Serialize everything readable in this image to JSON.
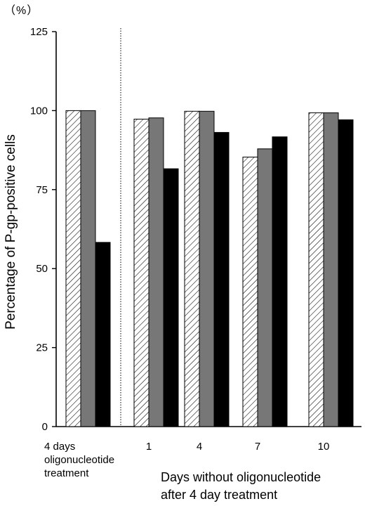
{
  "chart_data": {
    "type": "bar",
    "unit_label": "（%）",
    "ylabel": "Percentage of P-gp-positive cells",
    "xlabel_lines": [
      "Days without oligonucleotide",
      "after 4 day treatment"
    ],
    "ylim": [
      0,
      125
    ],
    "yticks": [
      0,
      25,
      50,
      75,
      100,
      125
    ],
    "categories": [
      "4 days oligonucleotide treatment",
      "1",
      "4",
      "7",
      "10"
    ],
    "category_label_lines": [
      [
        "4 days",
        "oligonucleotide",
        "treatment"
      ],
      [
        "1"
      ],
      [
        "4"
      ],
      [
        "7"
      ],
      [
        "10"
      ]
    ],
    "series": [
      {
        "fill": "hatched",
        "values": [
          100,
          97.3,
          99.8,
          85.3,
          99.3
        ]
      },
      {
        "fill": "#777777",
        "values": [
          100,
          97.7,
          99.8,
          87.9,
          99.3
        ]
      },
      {
        "fill": "#000000",
        "values": [
          58.3,
          81.6,
          93.1,
          91.7,
          97.1
        ]
      }
    ],
    "separator_after_category": 0,
    "grid": false,
    "legend": "none"
  }
}
